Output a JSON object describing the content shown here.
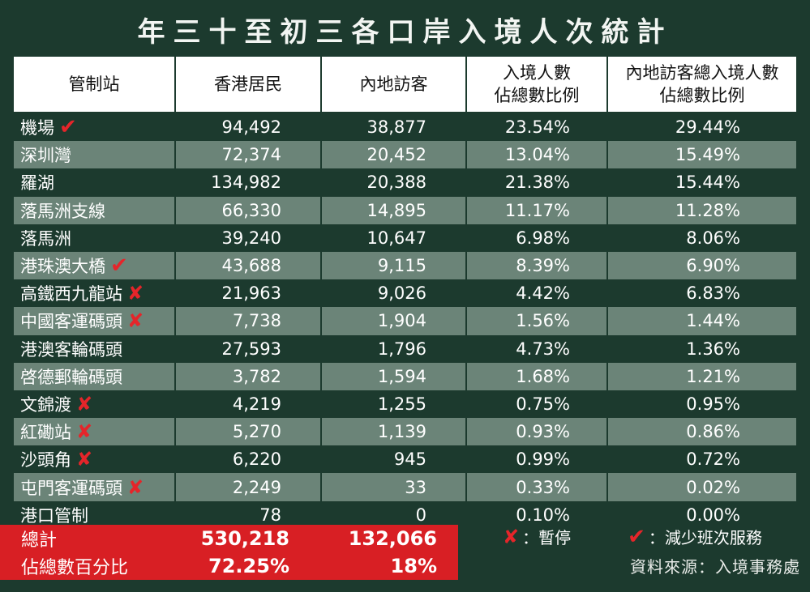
{
  "title": "年三十至初三各口岸入境人次統計",
  "headers": [
    "管制站",
    "香港居民",
    "內地訪客",
    "入境人數\n佔總數比例",
    "內地訪客總入境人數\n佔總數比例"
  ],
  "rows": [
    {
      "name": "機場",
      "hk": "94,492",
      "ml": "38,877",
      "p1": "23.54%",
      "p2": "29.44%",
      "mark": "✔"
    },
    {
      "name": "深圳灣",
      "hk": "72,374",
      "ml": "20,452",
      "p1": "13.04%",
      "p2": "15.49%",
      "mark": ""
    },
    {
      "name": "羅湖",
      "hk": "134,982",
      "ml": "20,388",
      "p1": "21.38%",
      "p2": "15.44%",
      "mark": ""
    },
    {
      "name": "落馬洲支線",
      "hk": "66,330",
      "ml": "14,895",
      "p1": "11.17%",
      "p2": "11.28%",
      "mark": ""
    },
    {
      "name": "落馬洲",
      "hk": "39,240",
      "ml": "10,647",
      "p1": "6.98%",
      "p2": "8.06%",
      "mark": ""
    },
    {
      "name": "港珠澳大橋",
      "hk": "43,688",
      "ml": "9,115",
      "p1": "8.39%",
      "p2": "6.90%",
      "mark": "✔"
    },
    {
      "name": "高鐵西九龍站",
      "hk": "21,963",
      "ml": "9,026",
      "p1": "4.42%",
      "p2": "6.83%",
      "mark": "✘"
    },
    {
      "name": "中國客運碼頭",
      "hk": "7,738",
      "ml": "1,904",
      "p1": "1.56%",
      "p2": "1.44%",
      "mark": "✘"
    },
    {
      "name": "港澳客輪碼頭",
      "hk": "27,593",
      "ml": "1,796",
      "p1": "4.73%",
      "p2": "1.36%",
      "mark": ""
    },
    {
      "name": "啓德郵輪碼頭",
      "hk": "3,782",
      "ml": "1,594",
      "p1": "1.68%",
      "p2": "1.21%",
      "mark": ""
    },
    {
      "name": "文錦渡",
      "hk": "4,219",
      "ml": "1,255",
      "p1": "0.75%",
      "p2": "0.95%",
      "mark": "✘"
    },
    {
      "name": "紅磡站",
      "hk": "5,270",
      "ml": "1,139",
      "p1": "0.93%",
      "p2": "0.86%",
      "mark": "✘"
    },
    {
      "name": "沙頭角",
      "hk": "6,220",
      "ml": "945",
      "p1": "0.99%",
      "p2": "0.72%",
      "mark": "✘"
    },
    {
      "name": "屯門客運碼頭",
      "hk": "2,249",
      "ml": "33",
      "p1": "0.33%",
      "p2": "0.02%",
      "mark": "✘"
    },
    {
      "name": "港口管制",
      "hk": "78",
      "ml": "0",
      "p1": "0.10%",
      "p2": "0.00%",
      "mark": ""
    }
  ],
  "totals": {
    "label": "總計",
    "hk": "530,218",
    "ml": "132,066"
  },
  "share": {
    "label": "佔總數百分比",
    "hk": "72.25%",
    "ml": "18%"
  },
  "legend": {
    "suspended": "：暫停",
    "reduced": "：減少班次服務"
  },
  "source": "資料來源：入境事務處",
  "colors": {
    "bg": "#1c3a2e",
    "alt_row": "#6b8478",
    "red": "#d81f24"
  }
}
